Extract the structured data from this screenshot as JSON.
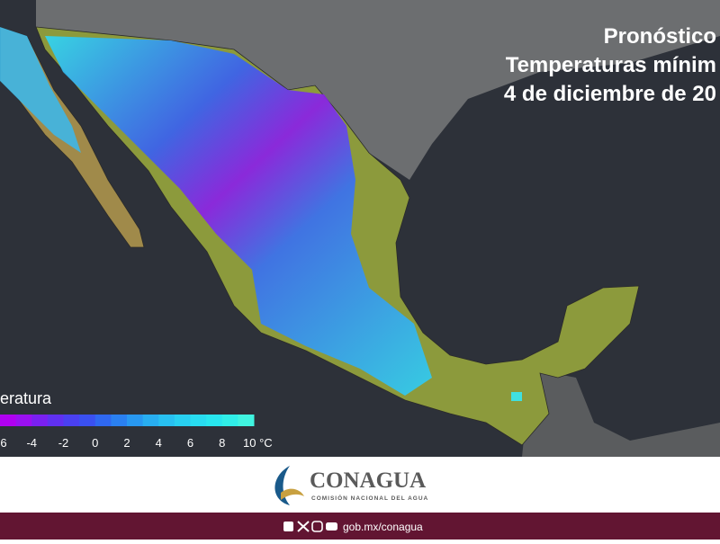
{
  "header": {
    "title_lines": [
      "Pronóstico",
      "Temperaturas mínim",
      "4 de diciembre de 20"
    ]
  },
  "legend": {
    "title": "eratura",
    "labels": [
      "6",
      "-4",
      "-2",
      "0",
      "2",
      "4",
      "6",
      "8",
      "10 °C"
    ],
    "colors": [
      "#b000f0",
      "#9a10f0",
      "#7a20f0",
      "#6030f0",
      "#4a40f0",
      "#3a50f0",
      "#2f68f0",
      "#2a80f0",
      "#2898f0",
      "#28aef0",
      "#28c0f0",
      "#28d0f0",
      "#28dcf0",
      "#28e6ee",
      "#30eee8",
      "#40f4e0"
    ]
  },
  "footer": {
    "brand": "CONAGUA",
    "subtitle": "COMISIÓN NACIONAL DEL AGUA",
    "link": "gob.mx/conagua"
  }
}
